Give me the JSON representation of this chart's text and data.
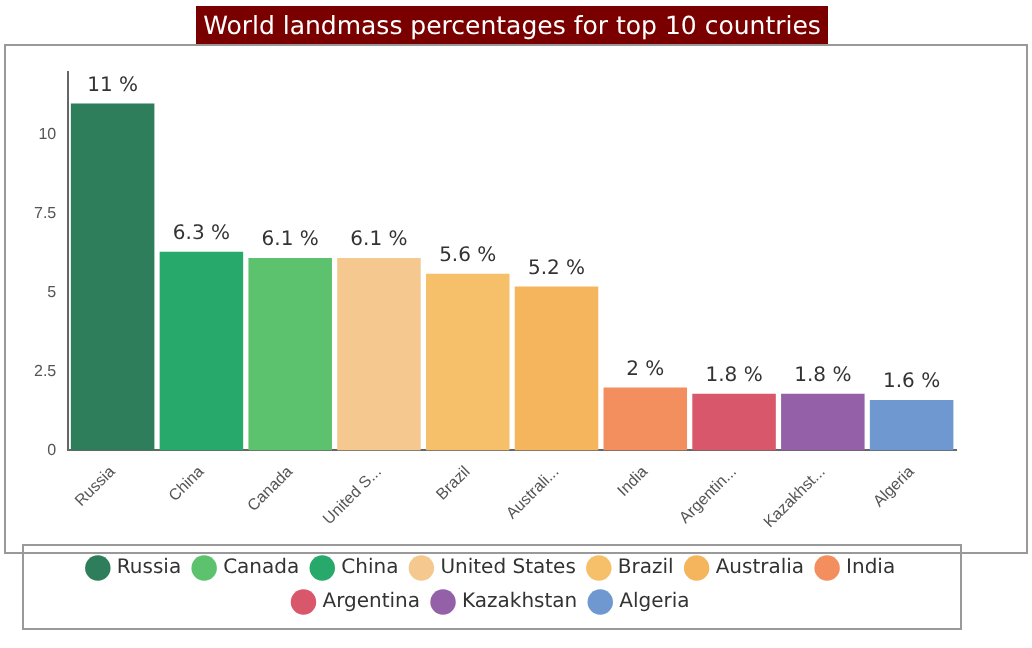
{
  "chart_data": {
    "type": "bar",
    "title": "World landmass percentages for top 10 countries",
    "categories": [
      "Russia",
      "China",
      "Canada",
      "United S...",
      "Brazil",
      "Australi...",
      "India",
      "Argentin...",
      "Kazakhst...",
      "Algeria"
    ],
    "series": [
      {
        "name": "Russia",
        "color": "#2e7d5b",
        "values": [
          11,
          null,
          null,
          null,
          null,
          null,
          null,
          null,
          null,
          null
        ],
        "value_labels": [
          "11 %",
          null,
          null,
          null,
          null,
          null,
          null,
          null,
          null,
          null
        ]
      },
      {
        "name": "Canada",
        "color": "#5cc26d",
        "values": [
          null,
          null,
          6.1,
          null,
          null,
          null,
          null,
          null,
          null,
          null
        ],
        "value_labels": [
          null,
          null,
          "6.1 %",
          null,
          null,
          null,
          null,
          null,
          null,
          null
        ]
      },
      {
        "name": "China",
        "color": "#27a96b",
        "values": [
          null,
          6.3,
          null,
          null,
          null,
          null,
          null,
          null,
          null,
          null
        ],
        "value_labels": [
          null,
          "6.3 %",
          null,
          null,
          null,
          null,
          null,
          null,
          null,
          null
        ]
      },
      {
        "name": "United States",
        "color": "#f5c88f",
        "values": [
          null,
          null,
          null,
          6.1,
          null,
          null,
          null,
          null,
          null,
          null
        ],
        "value_labels": [
          null,
          null,
          null,
          "6.1 %",
          null,
          null,
          null,
          null,
          null,
          null
        ]
      },
      {
        "name": "Brazil",
        "color": "#f6c06a",
        "values": [
          null,
          null,
          null,
          null,
          5.6,
          null,
          null,
          null,
          null,
          null
        ],
        "value_labels": [
          null,
          null,
          null,
          null,
          "5.6 %",
          null,
          null,
          null,
          null,
          null
        ]
      },
      {
        "name": "Australia",
        "color": "#f5b55d",
        "values": [
          null,
          null,
          null,
          null,
          null,
          5.2,
          null,
          null,
          null,
          null
        ],
        "value_labels": [
          null,
          null,
          null,
          null,
          null,
          "5.2 %",
          null,
          null,
          null,
          null
        ]
      },
      {
        "name": "India",
        "color": "#f38f5f",
        "values": [
          null,
          null,
          null,
          null,
          null,
          null,
          2,
          null,
          null,
          null
        ],
        "value_labels": [
          null,
          null,
          null,
          null,
          null,
          null,
          "2 %",
          null,
          null,
          null
        ]
      },
      {
        "name": "Argentina",
        "color": "#d9576a",
        "values": [
          null,
          null,
          null,
          null,
          null,
          null,
          null,
          1.8,
          null,
          null
        ],
        "value_labels": [
          null,
          null,
          null,
          null,
          null,
          null,
          null,
          "1.8 %",
          null,
          null
        ]
      },
      {
        "name": "Kazakhstan",
        "color": "#9461a8",
        "values": [
          null,
          null,
          null,
          null,
          null,
          null,
          null,
          null,
          1.8,
          null
        ],
        "value_labels": [
          null,
          null,
          null,
          null,
          null,
          null,
          null,
          null,
          "1.8 %",
          null
        ]
      },
      {
        "name": "Algeria",
        "color": "#6e98cf",
        "values": [
          null,
          null,
          null,
          null,
          null,
          null,
          null,
          null,
          null,
          1.6
        ],
        "value_labels": [
          null,
          null,
          null,
          null,
          null,
          null,
          null,
          null,
          null,
          "1.6 %"
        ]
      }
    ],
    "ylim": [
      0,
      12
    ],
    "yticks": [
      0,
      2.5,
      5,
      7.5,
      10
    ],
    "grid": false,
    "legend": "bottom"
  }
}
